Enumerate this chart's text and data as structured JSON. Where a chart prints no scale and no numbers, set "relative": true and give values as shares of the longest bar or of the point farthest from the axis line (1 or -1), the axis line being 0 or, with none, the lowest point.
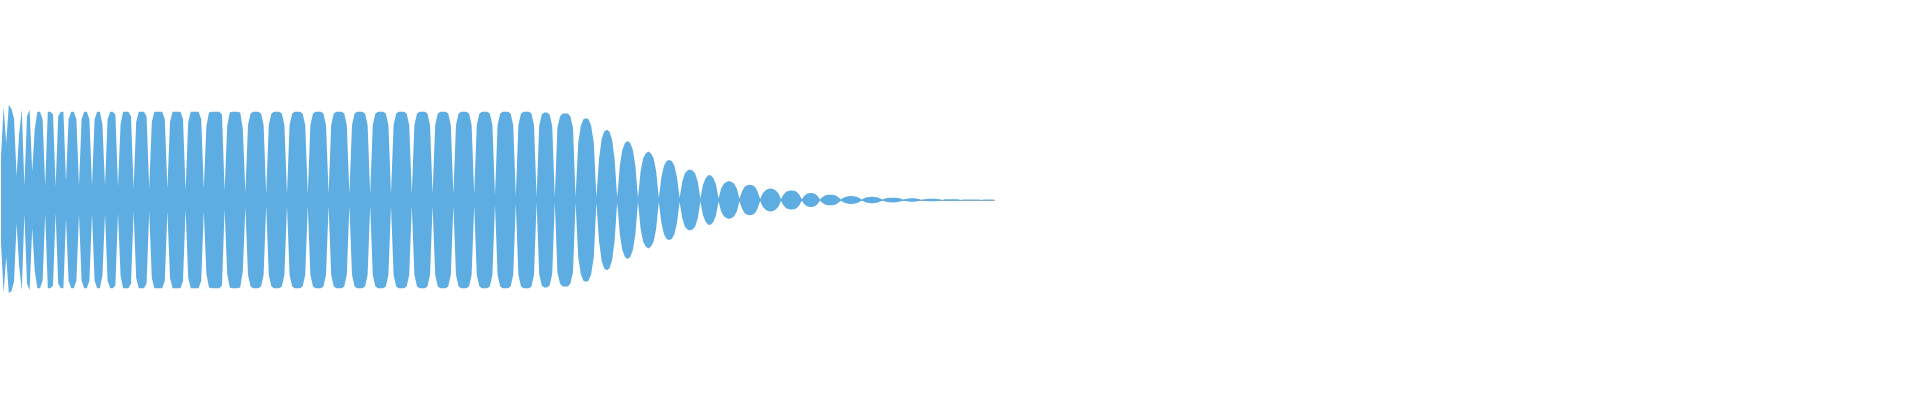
{
  "chart_data": {
    "type": "area",
    "relative": true,
    "categories": [
      null,
      null,
      null,
      null,
      null,
      null,
      null,
      null,
      null,
      null,
      null,
      null,
      null,
      null,
      null,
      null,
      null,
      null,
      null,
      null,
      null,
      null,
      null,
      null,
      null,
      null,
      null,
      null,
      null,
      null,
      null,
      null,
      null,
      null,
      null,
      null,
      null,
      null,
      null,
      null,
      null,
      null,
      null,
      null,
      null,
      null,
      null,
      null,
      null,
      null,
      null,
      null,
      null,
      null,
      null,
      null,
      null,
      null,
      null,
      null,
      null,
      null,
      null,
      null,
      null,
      null,
      null,
      null,
      null,
      null,
      null,
      null,
      null,
      null,
      null,
      null,
      null,
      null,
      null,
      null,
      null,
      null,
      null,
      null,
      null,
      null,
      null,
      null,
      null,
      null,
      null,
      null,
      null,
      null,
      null,
      null,
      null,
      null,
      null,
      null,
      null,
      null,
      null,
      null,
      null,
      null,
      null,
      null,
      null,
      null,
      null,
      null,
      null,
      null,
      null,
      null,
      null,
      null,
      null,
      null,
      null,
      null,
      null,
      null,
      null,
      null,
      null,
      null,
      null,
      null,
      null,
      null,
      null,
      null,
      null,
      null,
      null,
      null,
      null,
      null,
      null,
      null,
      null,
      null,
      null,
      null,
      null,
      null,
      null,
      null,
      null,
      null,
      null,
      null,
      null,
      null,
      null,
      null,
      null,
      null,
      null,
      null,
      null,
      null,
      null,
      null,
      null,
      null,
      null,
      null,
      null,
      null,
      null,
      null,
      null,
      null,
      null,
      null,
      null,
      null,
      null,
      null,
      null,
      null,
      null,
      null,
      null,
      null,
      null,
      null,
      null,
      null,
      null,
      null,
      null,
      null,
      null,
      null,
      null,
      null,
      null,
      null,
      null,
      null,
      null,
      null,
      null,
      null,
      null,
      null,
      null,
      null,
      null,
      null,
      null,
      null,
      null,
      null,
      null,
      null,
      null,
      null,
      null,
      null,
      null,
      null,
      null,
      null,
      null,
      null,
      null,
      null,
      null,
      null,
      null,
      null,
      null,
      null,
      null,
      null,
      null,
      null,
      null,
      null,
      null,
      null,
      null,
      null,
      null,
      null,
      null,
      null,
      null,
      null,
      null,
      null,
      null,
      null,
      null,
      null,
      null,
      null,
      null,
      null,
      null,
      null,
      null,
      null,
      null,
      null,
      null,
      null,
      null,
      null,
      null,
      null,
      null,
      null,
      null,
      null,
      null,
      null,
      null,
      null,
      null,
      null,
      null,
      null,
      null,
      null,
      null,
      null,
      null,
      null,
      null,
      null,
      null,
      null,
      null,
      null,
      null,
      null,
      null,
      null,
      null,
      null,
      null,
      null,
      null,
      null,
      null,
      null,
      null,
      null,
      null,
      null,
      null,
      null,
      null,
      null,
      null,
      null,
      null,
      null,
      null,
      null,
      null,
      null,
      null,
      null,
      null,
      null,
      null,
      null,
      null,
      null,
      null,
      null,
      null,
      null,
      null,
      null,
      null,
      null,
      null,
      null,
      null,
      null,
      null,
      null,
      null,
      null,
      null,
      null,
      null,
      null,
      null,
      null,
      null,
      null,
      null,
      null,
      null,
      null,
      null,
      null,
      null,
      null,
      null,
      null,
      null,
      null,
      null,
      null,
      null,
      null,
      null,
      null,
      null,
      null,
      null,
      null,
      null
    ],
    "series": [
      {
        "color": "#5dade2",
        "values": [
          0.45,
          0.98,
          0.6,
          1,
          0.96,
          0.86,
          0.25,
          0.7,
          0.95,
          0.15,
          0.88,
          0.95,
          0.3,
          0.75,
          0.93,
          0.93,
          0.85,
          0.15,
          0.93,
          0.93,
          0.9,
          0.14,
          0.88,
          0.93,
          0.93,
          0.2,
          0.85,
          0.93,
          0.93,
          0.85,
          0.15,
          0.85,
          0.93,
          0.93,
          0.85,
          0.15,
          0.85,
          0.93,
          0.93,
          0.8,
          0.15,
          0.85,
          0.93,
          0.93,
          0.9,
          0.14,
          0.8,
          0.93,
          0.93,
          0.93,
          0.88,
          0.12,
          0.82,
          0.93,
          0.93,
          0.93,
          0.88,
          0.12,
          0.82,
          0.93,
          0.93,
          0.93,
          0.93,
          0.85,
          0.12,
          0.82,
          0.93,
          0.93,
          0.93,
          0.93,
          0.85,
          0.1,
          0.82,
          0.93,
          0.93,
          0.93,
          0.93,
          0.85,
          0.12,
          0.78,
          0.92,
          0.93,
          0.93,
          0.93,
          0.93,
          0.9,
          0.1,
          0.78,
          0.92,
          0.93,
          0.93,
          0.93,
          0.92,
          0.75,
          0.08,
          0.79,
          0.91,
          0.93,
          0.93,
          0.93,
          0.91,
          0.79,
          0.065,
          0.79,
          0.91,
          0.93,
          0.93,
          0.93,
          0.91,
          0.79,
          0.065,
          0.79,
          0.91,
          0.93,
          0.93,
          0.93,
          0.91,
          0.79,
          0.065,
          0.79,
          0.91,
          0.93,
          0.93,
          0.93,
          0.91,
          0.79,
          0.065,
          0.79,
          0.91,
          0.93,
          0.93,
          0.93,
          0.91,
          0.79,
          0.065,
          0.79,
          0.91,
          0.93,
          0.93,
          0.93,
          0.91,
          0.79,
          0.065,
          0.79,
          0.91,
          0.93,
          0.93,
          0.93,
          0.91,
          0.79,
          0.065,
          0.79,
          0.91,
          0.93,
          0.93,
          0.93,
          0.91,
          0.79,
          0.065,
          0.79,
          0.91,
          0.93,
          0.93,
          0.93,
          0.91,
          0.79,
          0.065,
          0.79,
          0.91,
          0.93,
          0.93,
          0.93,
          0.91,
          0.79,
          0.065,
          0.79,
          0.91,
          0.93,
          0.93,
          0.93,
          0.91,
          0.79,
          0.065,
          0.79,
          0.91,
          0.93,
          0.93,
          0.93,
          0.91,
          0.79,
          0.05,
          0.79,
          0.91,
          0.93,
          0.93,
          0.93,
          0.91,
          0.79,
          0.04,
          0.79,
          0.91,
          0.93,
          0.93,
          0.93,
          0.91,
          0.79,
          0.03,
          0.78,
          0.9,
          0.92,
          0.92,
          0.9,
          0.78,
          0.03,
          0.76,
          0.88,
          0.91,
          0.91,
          0.91,
          0.88,
          0.76,
          0.03,
          0.6,
          0.78,
          0.85,
          0.86,
          0.85,
          0.78,
          0.6,
          0.03,
          0.43,
          0.64,
          0.72,
          0.74,
          0.72,
          0.64,
          0.43,
          0.025,
          0.36,
          0.53,
          0.6,
          0.62,
          0.6,
          0.53,
          0.36,
          0.02,
          0.3,
          0.44,
          0.49,
          0.51,
          0.49,
          0.44,
          0.3,
          0.02,
          0.24,
          0.36,
          0.41,
          0.42,
          0.41,
          0.36,
          0.24,
          0.02,
          0.19,
          0.28,
          0.31,
          0.32,
          0.31,
          0.28,
          0.19,
          0.015,
          0.16,
          0.23,
          0.26,
          0.26,
          0.23,
          0.16,
          0.015,
          0.12,
          0.17,
          0.19,
          0.2,
          0.19,
          0.17,
          0.12,
          0.012,
          0.09,
          0.14,
          0.155,
          0.16,
          0.155,
          0.14,
          0.09,
          0.01,
          0.07,
          0.1,
          0.115,
          0.12,
          0.115,
          0.1,
          0.07,
          0.008,
          0.058,
          0.086,
          0.097,
          0.1,
          0.097,
          0.086,
          0.058,
          0.007,
          0.044,
          0.065,
          0.073,
          0.073,
          0.065,
          0.044,
          0.006,
          0.032,
          0.048,
          0.054,
          0.056,
          0.054,
          0.048,
          0.032,
          0.005,
          0.024,
          0.035,
          0.04,
          0.041,
          0.04,
          0.035,
          0.024,
          0.005,
          0.019,
          0.028,
          0.032,
          0.033,
          0.032,
          0.028,
          0.019,
          0.004,
          0.015,
          0.021,
          0.024,
          0.025,
          0.024,
          0.021,
          0.015,
          0.004,
          0.011,
          0.016,
          0.018,
          0.018,
          0.016,
          0.011,
          0.003,
          0.008,
          0.011,
          0.013,
          0.013,
          0.013,
          0.011,
          0.008,
          0,
          0.007,
          0.009,
          0.009,
          0.009,
          0.009,
          0.007,
          0,
          0.005,
          0.006,
          0.006,
          0.006,
          0.006,
          0.006,
          0.005,
          0,
          0.005,
          0.006,
          0.006,
          0.006,
          0.005
        ]
      },
      {
        "color": "#5eade2",
        "values": [
          -0.45,
          -0.98,
          -0.6,
          -0.98,
          -0.96,
          -0.86,
          -0.25,
          -0.7,
          -0.95,
          -0.15,
          -0.88,
          -0.95,
          -0.3,
          -0.75,
          -0.93,
          -0.93,
          -0.85,
          -0.15,
          -0.93,
          -0.93,
          -0.9,
          -0.14,
          -0.88,
          -0.93,
          -0.93,
          -0.2,
          -0.85,
          -0.93,
          -0.93,
          -0.85,
          -0.15,
          -0.85,
          -0.93,
          -0.93,
          -0.85,
          -0.15,
          -0.85,
          -0.93,
          -0.93,
          -0.8,
          -0.15,
          -0.85,
          -0.93,
          -0.93,
          -0.9,
          -0.14,
          -0.8,
          -0.93,
          -0.93,
          -0.93,
          -0.88,
          -0.12,
          -0.82,
          -0.93,
          -0.93,
          -0.93,
          -0.88,
          -0.12,
          -0.82,
          -0.93,
          -0.93,
          -0.93,
          -0.93,
          -0.85,
          -0.12,
          -0.82,
          -0.93,
          -0.93,
          -0.93,
          -0.93,
          -0.85,
          -0.1,
          -0.82,
          -0.93,
          -0.93,
          -0.93,
          -0.93,
          -0.85,
          -0.12,
          -0.78,
          -0.92,
          -0.93,
          -0.93,
          -0.93,
          -0.93,
          -0.9,
          -0.1,
          -0.78,
          -0.92,
          -0.93,
          -0.93,
          -0.93,
          -0.92,
          -0.75,
          -0.08,
          -0.79,
          -0.91,
          -0.93,
          -0.93,
          -0.93,
          -0.91,
          -0.79,
          -0.065,
          -0.79,
          -0.91,
          -0.93,
          -0.93,
          -0.93,
          -0.91,
          -0.79,
          -0.065,
          -0.79,
          -0.91,
          -0.93,
          -0.93,
          -0.93,
          -0.91,
          -0.79,
          -0.065,
          -0.79,
          -0.91,
          -0.93,
          -0.93,
          -0.93,
          -0.91,
          -0.79,
          -0.065,
          -0.79,
          -0.91,
          -0.93,
          -0.93,
          -0.93,
          -0.91,
          -0.79,
          -0.065,
          -0.79,
          -0.91,
          -0.93,
          -0.93,
          -0.93,
          -0.91,
          -0.79,
          -0.065,
          -0.79,
          -0.91,
          -0.93,
          -0.93,
          -0.93,
          -0.91,
          -0.79,
          -0.065,
          -0.79,
          -0.91,
          -0.93,
          -0.93,
          -0.93,
          -0.91,
          -0.79,
          -0.065,
          -0.79,
          -0.91,
          -0.93,
          -0.93,
          -0.93,
          -0.91,
          -0.79,
          -0.065,
          -0.79,
          -0.91,
          -0.93,
          -0.93,
          -0.93,
          -0.91,
          -0.79,
          -0.065,
          -0.79,
          -0.91,
          -0.93,
          -0.93,
          -0.93,
          -0.91,
          -0.79,
          -0.065,
          -0.79,
          -0.91,
          -0.93,
          -0.93,
          -0.93,
          -0.91,
          -0.79,
          -0.05,
          -0.79,
          -0.91,
          -0.93,
          -0.93,
          -0.93,
          -0.91,
          -0.79,
          -0.04,
          -0.79,
          -0.91,
          -0.93,
          -0.93,
          -0.93,
          -0.91,
          -0.79,
          -0.03,
          -0.78,
          -0.9,
          -0.92,
          -0.92,
          -0.9,
          -0.78,
          -0.03,
          -0.76,
          -0.88,
          -0.91,
          -0.91,
          -0.91,
          -0.88,
          -0.76,
          -0.03,
          -0.6,
          -0.78,
          -0.85,
          -0.86,
          -0.85,
          -0.78,
          -0.6,
          -0.03,
          -0.43,
          -0.64,
          -0.72,
          -0.74,
          -0.72,
          -0.64,
          -0.43,
          -0.025,
          -0.36,
          -0.53,
          -0.6,
          -0.62,
          -0.6,
          -0.53,
          -0.36,
          -0.02,
          -0.3,
          -0.44,
          -0.49,
          -0.51,
          -0.49,
          -0.44,
          -0.3,
          -0.02,
          -0.24,
          -0.36,
          -0.41,
          -0.42,
          -0.41,
          -0.36,
          -0.24,
          -0.02,
          -0.19,
          -0.28,
          -0.31,
          -0.32,
          -0.31,
          -0.28,
          -0.19,
          -0.015,
          -0.16,
          -0.23,
          -0.26,
          -0.26,
          -0.23,
          -0.16,
          -0.015,
          -0.12,
          -0.17,
          -0.19,
          -0.2,
          -0.19,
          -0.17,
          -0.12,
          -0.012,
          -0.09,
          -0.14,
          -0.155,
          -0.16,
          -0.155,
          -0.14,
          -0.09,
          -0.01,
          -0.07,
          -0.1,
          -0.115,
          -0.12,
          -0.115,
          -0.1,
          -0.07,
          -0.008,
          -0.058,
          -0.086,
          -0.097,
          -0.1,
          -0.097,
          -0.086,
          -0.058,
          -0.007,
          -0.044,
          -0.065,
          -0.073,
          -0.073,
          -0.065,
          -0.044,
          -0.006,
          -0.032,
          -0.048,
          -0.054,
          -0.056,
          -0.054,
          -0.048,
          -0.032,
          -0.005,
          -0.024,
          -0.035,
          -0.04,
          -0.041,
          -0.04,
          -0.035,
          -0.024,
          -0.005,
          -0.019,
          -0.028,
          -0.032,
          -0.033,
          -0.032,
          -0.028,
          -0.019,
          -0.004,
          -0.015,
          -0.021,
          -0.024,
          -0.025,
          -0.024,
          -0.021,
          -0.015,
          -0.004,
          -0.011,
          -0.016,
          -0.018,
          -0.018,
          -0.016,
          -0.011,
          -0.003,
          -0.008,
          -0.011,
          -0.013,
          -0.013,
          -0.013,
          -0.011,
          -0.008,
          0,
          -0.007,
          -0.009,
          -0.009,
          -0.009,
          -0.009,
          -0.007,
          0,
          -0.005,
          -0.006,
          -0.006,
          -0.006,
          -0.006,
          -0.006,
          -0.005,
          0,
          -0.005,
          -0.006,
          -0.006,
          -0.006,
          -0.005
        ]
      }
    ]
  }
}
